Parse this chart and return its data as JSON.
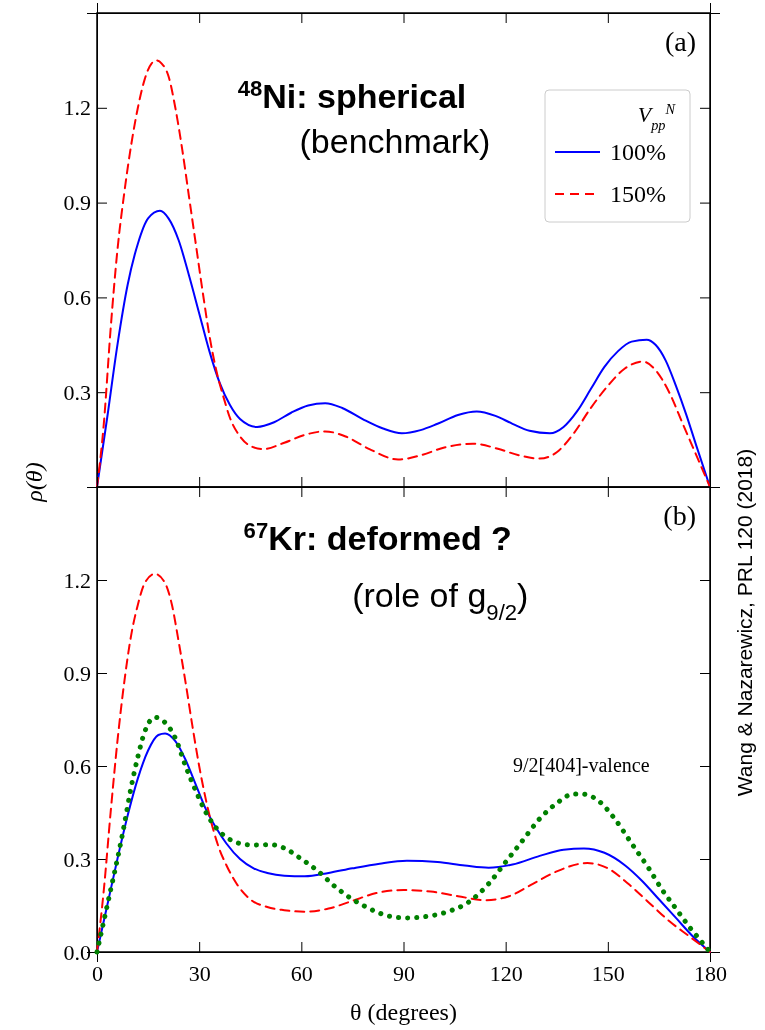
{
  "chart_data": [
    {
      "type": "line",
      "title": "$^{48}$Ni: spherical",
      "subtitle": "(benchmark)",
      "ylabel": "ρ(θ)",
      "legend_title": "V$_{pp}$$^{N}$",
      "legend": "top right",
      "tick_labels": "y",
      "marker": "none",
      "xlim": [
        0,
        180
      ],
      "xticks": [
        0,
        30,
        60,
        90,
        120,
        150,
        180
      ],
      "ylim": [
        0,
        1.5
      ],
      "yticks": [
        0.3,
        0.6,
        0.9,
        1.2
      ],
      "annotations": [
        "(a)"
      ],
      "series": [
        {
          "name": "100%",
          "color": "#0000ff",
          "line_style": "solid",
          "x": [
            0,
            3,
            6,
            9,
            12,
            15,
            18.5,
            21,
            24,
            27,
            30,
            33,
            36,
            39,
            42,
            47,
            52,
            57,
            62,
            67,
            72,
            78,
            84,
            89.5,
            95,
            100,
            106,
            111.5,
            117,
            122,
            127,
            133,
            137,
            141,
            145,
            149,
            153,
            157,
            161.4,
            164,
            167,
            170,
            173,
            176,
            180
          ],
          "values": [
            0,
            0.22,
            0.45,
            0.64,
            0.77,
            0.85,
            0.874,
            0.85,
            0.78,
            0.67,
            0.55,
            0.43,
            0.33,
            0.26,
            0.215,
            0.19,
            0.205,
            0.235,
            0.258,
            0.265,
            0.25,
            0.215,
            0.185,
            0.17,
            0.18,
            0.2,
            0.228,
            0.239,
            0.225,
            0.2,
            0.178,
            0.17,
            0.19,
            0.24,
            0.31,
            0.38,
            0.43,
            0.46,
            0.466,
            0.45,
            0.4,
            0.32,
            0.23,
            0.13,
            0
          ]
        },
        {
          "name": "150%",
          "color": "#ff0000",
          "line_style": "dashed",
          "x": [
            0,
            2,
            4,
            6,
            8,
            10,
            12,
            14,
            16,
            17.5,
            19,
            21,
            23,
            25,
            27,
            29,
            31,
            33,
            35,
            37,
            39,
            42,
            45,
            48.8,
            55,
            61,
            67,
            73,
            80,
            88.4,
            95,
            102,
            110.4,
            118,
            124,
            130,
            135,
            140,
            145,
            150,
            155,
            160.3,
            164,
            168,
            172,
            176,
            180
          ],
          "values": [
            0,
            0.2,
            0.5,
            0.75,
            0.93,
            1.08,
            1.2,
            1.29,
            1.34,
            1.35,
            1.34,
            1.3,
            1.2,
            1.07,
            0.92,
            0.77,
            0.62,
            0.48,
            0.37,
            0.29,
            0.22,
            0.16,
            0.13,
            0.12,
            0.14,
            0.165,
            0.176,
            0.16,
            0.12,
            0.087,
            0.1,
            0.125,
            0.137,
            0.12,
            0.1,
            0.09,
            0.11,
            0.17,
            0.25,
            0.32,
            0.375,
            0.397,
            0.37,
            0.3,
            0.2,
            0.1,
            0
          ]
        }
      ]
    },
    {
      "type": "line",
      "title": "$^{67}$Kr: deformed ?",
      "subtitle": "(role of g$_{9/2}$)",
      "xlabel": "θ (degrees)",
      "legend": false,
      "marker": "none",
      "xlim": [
        0,
        180
      ],
      "xticks": [
        0,
        30,
        60,
        90,
        120,
        150,
        180
      ],
      "ylim": [
        0,
        1.5
      ],
      "yticks": [
        {
          "value": 0,
          "label": "0.0"
        },
        0.3,
        0.6,
        0.9,
        1.2
      ],
      "annotations": [
        "(b)",
        "9/2[404]-valence",
        "Wang & Nazarewicz, PRL 120 (2018)"
      ],
      "series": [
        {
          "color": "#0000ff",
          "line_style": "solid",
          "x": [
            0,
            3,
            6,
            9,
            12,
            15,
            18,
            20,
            23,
            26,
            29,
            32,
            35,
            38,
            42,
            46,
            50,
            55,
            61,
            68,
            75,
            83,
            91,
            100,
            108,
            115,
            122,
            130,
            137,
            143,
            149,
            155,
            160,
            165,
            170,
            175,
            180
          ],
          "values": [
            0,
            0.15,
            0.3,
            0.44,
            0.56,
            0.65,
            0.7,
            0.705,
            0.68,
            0.62,
            0.54,
            0.46,
            0.4,
            0.35,
            0.3,
            0.27,
            0.255,
            0.246,
            0.244,
            0.255,
            0.27,
            0.285,
            0.294,
            0.29,
            0.279,
            0.272,
            0.282,
            0.31,
            0.33,
            0.334,
            0.32,
            0.28,
            0.23,
            0.17,
            0.11,
            0.05,
            0
          ]
        },
        {
          "color": "#ff0000",
          "line_style": "dashed",
          "x": [
            0,
            2,
            4,
            6,
            8,
            10,
            12,
            14,
            17,
            20,
            22,
            24,
            26,
            28,
            30,
            32,
            34,
            36,
            38,
            41,
            45,
            50,
            55,
            61,
            68,
            75,
            82,
            90,
            98,
            106,
            114,
            121,
            128,
            135,
            144,
            150,
            156,
            162,
            168,
            174,
            180
          ],
          "values": [
            0,
            0.2,
            0.45,
            0.68,
            0.87,
            1.02,
            1.12,
            1.19,
            1.22,
            1.19,
            1.12,
            1.0,
            0.87,
            0.73,
            0.6,
            0.49,
            0.4,
            0.33,
            0.28,
            0.22,
            0.17,
            0.145,
            0.135,
            0.13,
            0.14,
            0.165,
            0.19,
            0.2,
            0.195,
            0.18,
            0.167,
            0.18,
            0.22,
            0.26,
            0.287,
            0.27,
            0.22,
            0.16,
            0.1,
            0.05,
            0
          ]
        },
        {
          "color": "#008000",
          "line_style": "dotted",
          "x": [
            0,
            2,
            4,
            6,
            8,
            10,
            12,
            14,
            17,
            20,
            23,
            26,
            29,
            32,
            35,
            38,
            42,
            46,
            51,
            55,
            60,
            65,
            70,
            75,
            80,
            86,
            91,
            97,
            103,
            109,
            115,
            120,
            125,
            130,
            135,
            140,
            142,
            147,
            152,
            157,
            162,
            166,
            170,
            174,
            177,
            180
          ],
          "values": [
            0,
            0.1,
            0.2,
            0.3,
            0.41,
            0.53,
            0.63,
            0.71,
            0.757,
            0.74,
            0.69,
            0.6,
            0.52,
            0.45,
            0.4,
            0.37,
            0.35,
            0.345,
            0.346,
            0.335,
            0.3,
            0.26,
            0.21,
            0.17,
            0.14,
            0.115,
            0.11,
            0.115,
            0.13,
            0.16,
            0.22,
            0.29,
            0.36,
            0.43,
            0.48,
            0.51,
            0.51,
            0.49,
            0.43,
            0.35,
            0.27,
            0.2,
            0.14,
            0.08,
            0.04,
            0
          ]
        }
      ]
    }
  ]
}
